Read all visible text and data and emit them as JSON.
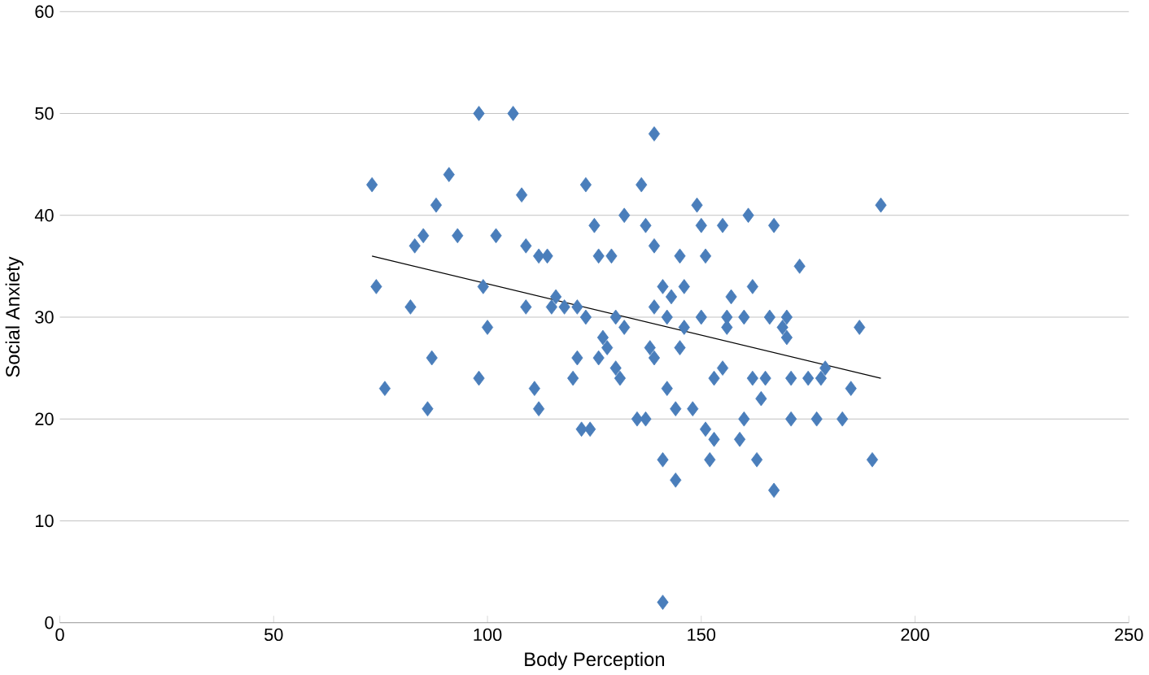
{
  "chart_data": {
    "type": "scatter",
    "xlabel": "Body Perception",
    "ylabel": "Social Anxiety",
    "xlim": [
      0,
      250
    ],
    "xticks": [
      0,
      50,
      100,
      150,
      200,
      250
    ],
    "ylim": [
      0,
      60
    ],
    "yticks": [
      0,
      10,
      20,
      30,
      40,
      50,
      60
    ],
    "grid": "y",
    "marker": "diamond",
    "series": [
      {
        "color": "#4a7ebb",
        "x": [
          73,
          74,
          76,
          82,
          83,
          85,
          86,
          87,
          88,
          91,
          93,
          98,
          98,
          100,
          99,
          106,
          102,
          108,
          109,
          109,
          111,
          112,
          112,
          114,
          115,
          116,
          118,
          120,
          121,
          121,
          122,
          123,
          124,
          123,
          125,
          126,
          126,
          127,
          128,
          129,
          130,
          130,
          131,
          132,
          132,
          135,
          136,
          137,
          137,
          139,
          138,
          139,
          139,
          139,
          141,
          141,
          141,
          142,
          142,
          143,
          144,
          144,
          145,
          145,
          146,
          146,
          148,
          149,
          150,
          150,
          151,
          151,
          152,
          153,
          153,
          155,
          155,
          156,
          156,
          157,
          159,
          160,
          160,
          161,
          162,
          162,
          163,
          164,
          165,
          166,
          167,
          167,
          169,
          170,
          170,
          171,
          171,
          173,
          175,
          177,
          178,
          179,
          183,
          185,
          187,
          190,
          192
        ],
        "values": [
          43,
          33,
          23,
          31,
          37,
          38,
          21,
          26,
          41,
          44,
          38,
          50,
          24,
          29,
          33,
          50,
          38,
          42,
          37,
          31,
          23,
          21,
          36,
          36,
          31,
          32,
          31,
          24,
          26,
          31,
          19,
          43,
          19,
          30,
          39,
          36,
          26,
          28,
          27,
          36,
          25,
          30,
          24,
          29,
          40,
          20,
          43,
          20,
          39,
          37,
          27,
          26,
          48,
          31,
          33,
          2,
          16,
          23,
          30,
          32,
          21,
          14,
          27,
          36,
          33,
          29,
          21,
          41,
          39,
          30,
          36,
          19,
          16,
          18,
          24,
          25,
          39,
          30,
          29,
          32,
          18,
          20,
          30,
          40,
          24,
          33,
          16,
          22,
          24,
          30,
          39,
          13,
          29,
          30,
          28,
          20,
          24,
          35,
          24,
          20,
          24,
          25,
          20,
          23,
          29,
          16,
          41
        ]
      },
      {
        "type": "line",
        "color": "#000000",
        "marker": "none",
        "x": [
          73,
          192
        ],
        "values": [
          36,
          24
        ]
      }
    ]
  }
}
